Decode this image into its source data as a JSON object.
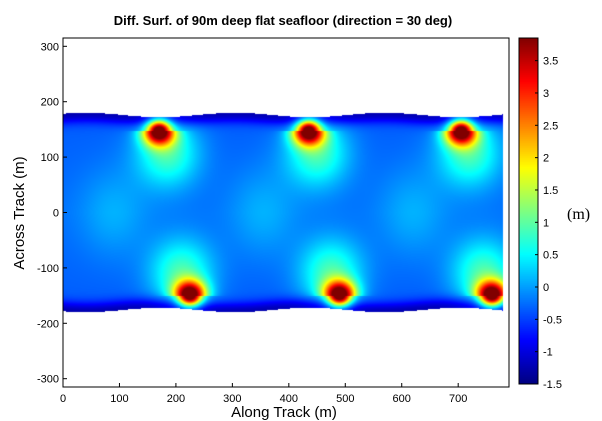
{
  "chart_data": {
    "type": "heatmap",
    "title": "Diff. Surf. of 90m deep flat seafloor (direction = 30 deg)",
    "xlabel": "Along Track (m)",
    "ylabel": "Across Track (m)",
    "xlim": [
      0,
      790
    ],
    "ylim": [
      -315,
      315
    ],
    "xticks": [
      0,
      100,
      200,
      300,
      400,
      500,
      600,
      700
    ],
    "yticks": [
      -300,
      -200,
      -100,
      0,
      100,
      200,
      300
    ],
    "swath": {
      "x_range": [
        0,
        780
      ],
      "edge_half_width_max": 180,
      "edge_half_width_min": 172,
      "period": 265
    },
    "peaks": {
      "top": [
        {
          "x": 170,
          "y": 148,
          "value": 3.8
        },
        {
          "x": 435,
          "y": 148,
          "value": 3.8
        },
        {
          "x": 705,
          "y": 148,
          "value": 3.8
        }
      ],
      "bottom": [
        {
          "x": 225,
          "y": -150,
          "value": 3.8
        },
        {
          "x": 490,
          "y": -150,
          "value": 3.8
        },
        {
          "x": 760,
          "y": -150,
          "value": 3.8
        }
      ]
    },
    "colorbar": {
      "min": -1.5,
      "max": 3.85,
      "ticks": [
        -1.5,
        -1,
        -0.5,
        0,
        0.5,
        1,
        1.5,
        2,
        2.5,
        3,
        3.5
      ],
      "tick_labels": [
        "-1.5",
        "-1",
        "-0.5",
        "0",
        "0.5",
        "1",
        "1.5",
        "2",
        "2.5",
        "3",
        "3.5"
      ],
      "colormap": "jet",
      "unit_label": "(m)"
    }
  }
}
